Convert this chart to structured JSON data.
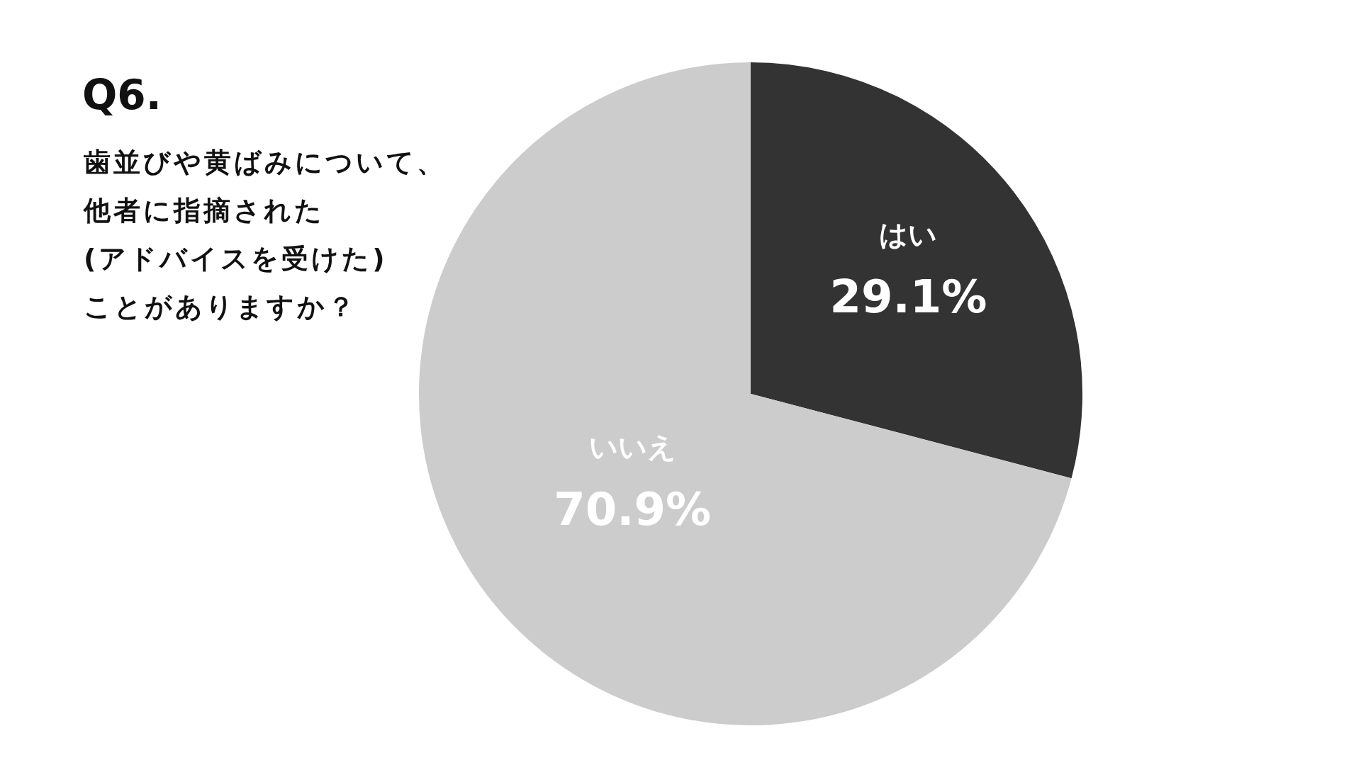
{
  "chart_data": {
    "type": "pie",
    "title": "Q6.",
    "annotations": [
      "歯並びや黄ばみについて、",
      "他者に指摘された",
      "(アドバイスを受けた)",
      "ことがありますか？"
    ],
    "categories": [
      "はい",
      "いいえ"
    ],
    "values": [
      29.1,
      70.9
    ],
    "colors": [
      "#333333",
      "#cccccc"
    ],
    "value_labels": [
      "29.1%",
      "70.9%"
    ],
    "legend": false
  }
}
